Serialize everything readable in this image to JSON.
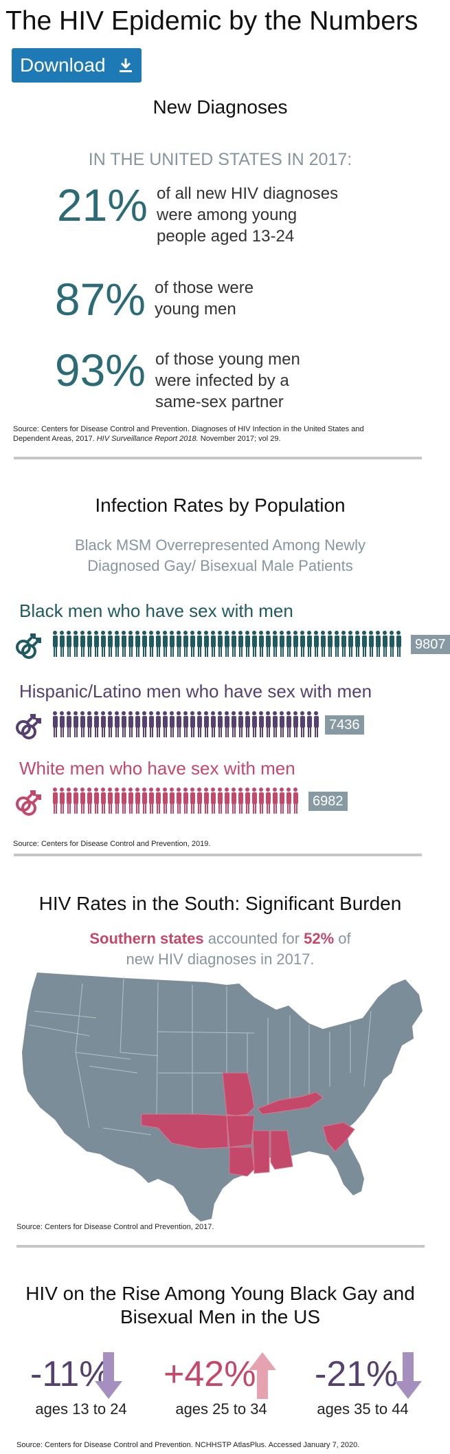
{
  "header": {
    "title": "The HIV Epidemic by the Numbers",
    "download_label": "Download"
  },
  "diagnoses": {
    "title": "New Diagnoses",
    "subtitle": "IN THE UNITED STATES IN 2017:",
    "stats": [
      {
        "pct": "21%",
        "lines": [
          "of all new HIV diagnoses",
          "were among young",
          "people aged 13-24"
        ]
      },
      {
        "pct": "87%",
        "lines": [
          "of those were",
          "young men"
        ]
      },
      {
        "pct": "93%",
        "lines": [
          "of those young men",
          "were infected by a",
          "same-sex partner"
        ]
      }
    ],
    "source_plain": "Source: Centers for Disease Control and Prevention. Diagnoses of HIV Infection in the United States and",
    "source_line2_plain": "Dependent Areas, 2017.",
    "source_italic": "HIV Surveillance Report 2018.",
    "source_end": "November 2017; vol 29."
  },
  "rates": {
    "title": "Infection Rates by Population",
    "subtitle_lines": [
      "Black MSM Overrepresented Among Newly",
      "Diagnosed Gay/ Bisexual Male Patients"
    ],
    "populations": [
      {
        "label": "Black men who have sex with men",
        "count": "9807",
        "value": 9807,
        "color": "#1f5a61"
      },
      {
        "label": "Hispanic/Latino men who have sex with men",
        "count": "7436",
        "value": 7436,
        "color": "#55406f"
      },
      {
        "label": "White men who have sex with men",
        "count": "6982",
        "value": 6982,
        "color": "#c4486a"
      }
    ],
    "source": "Source: Centers for Disease Control and Prevention, 2019."
  },
  "south": {
    "title": "HIV Rates in the South: Significant Burden",
    "hl1": "Southern states",
    "mid": " accounted for ",
    "hl2": "52%",
    "end": " of",
    "line2": "new HIV diagnoses in 2017.",
    "map_color": "#7a8d98",
    "highlight_color": "#c4486a",
    "source": "Source: Centers for Disease Control and Prevention, 2017."
  },
  "rise": {
    "title_lines": [
      "HIV on the Rise Among Young Black Gay and",
      "Bisexual Men in the US"
    ],
    "trends": [
      {
        "value": "-11%",
        "label": "ages 13 to 24",
        "direction": "down",
        "color": "#55406f",
        "arrow_color": "#a48fbe"
      },
      {
        "value": "+42%",
        "label": "ages 25 to 34",
        "direction": "up",
        "color": "#c4486a",
        "arrow_color": "#e5a3b1"
      },
      {
        "value": "-21%",
        "label": "ages 35 to 44",
        "direction": "down",
        "color": "#55406f",
        "arrow_color": "#a48fbe"
      }
    ],
    "source": "Source: Centers for Disease Control and Prevention. NCHHSTP AtlasPlus. Accessed January 7, 2020."
  }
}
